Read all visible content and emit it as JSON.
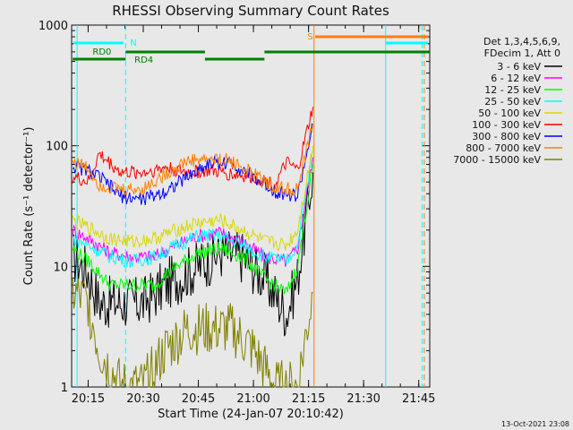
{
  "chart_data": {
    "type": "line",
    "title": "RHESSI Observing Summary Count Rates",
    "xlabel": "Start Time (24-Jan-07 20:10:42)",
    "ylabel": "Count Rate (s⁻¹ detector⁻¹)",
    "y_scale": "log",
    "ylim": [
      1,
      1000
    ],
    "xlim_minutes": [
      20.175,
      21.8
    ],
    "x_ticks": [
      "20:15",
      "20:30",
      "20:45",
      "21:00",
      "21:15",
      "21:30",
      "21:45"
    ],
    "y_ticks": [
      "1",
      "10",
      "100",
      "1000"
    ],
    "legend_header": [
      "Det 1,3,4,5,6,9,",
      "FDecim 1, Att 0"
    ],
    "legend_position": "right",
    "series": [
      {
        "name": "3 - 6 keV",
        "color": "#000000",
        "values": [
          [
            20.18,
            12
          ],
          [
            20.25,
            9
          ],
          [
            20.3,
            5
          ],
          [
            20.4,
            5
          ],
          [
            20.5,
            5
          ],
          [
            20.6,
            7
          ],
          [
            20.75,
            10
          ],
          [
            20.85,
            13
          ],
          [
            20.95,
            12
          ],
          [
            21.05,
            8
          ],
          [
            21.15,
            4
          ],
          [
            21.2,
            8
          ],
          [
            21.27,
            60
          ]
        ]
      },
      {
        "name": "6 - 12 keV",
        "color": "#ff00ff",
        "values": [
          [
            20.18,
            20
          ],
          [
            20.25,
            17
          ],
          [
            20.35,
            13
          ],
          [
            20.45,
            12
          ],
          [
            20.55,
            12
          ],
          [
            20.65,
            15
          ],
          [
            20.75,
            18
          ],
          [
            20.85,
            19
          ],
          [
            20.95,
            16
          ],
          [
            21.05,
            12
          ],
          [
            21.15,
            11
          ],
          [
            21.2,
            14
          ],
          [
            21.27,
            80
          ]
        ]
      },
      {
        "name": "12 - 25 keV",
        "color": "#00ff00",
        "values": [
          [
            20.18,
            14
          ],
          [
            20.25,
            11
          ],
          [
            20.35,
            7
          ],
          [
            20.45,
            7
          ],
          [
            20.55,
            7
          ],
          [
            20.65,
            10
          ],
          [
            20.75,
            13
          ],
          [
            20.85,
            14
          ],
          [
            20.95,
            12
          ],
          [
            21.05,
            8
          ],
          [
            21.15,
            6
          ],
          [
            21.2,
            10
          ],
          [
            21.27,
            70
          ]
        ]
      },
      {
        "name": "25 - 50 keV",
        "color": "#00ffff",
        "values": [
          [
            20.18,
            17
          ],
          [
            20.25,
            15
          ],
          [
            20.35,
            12
          ],
          [
            20.45,
            11
          ],
          [
            20.55,
            12
          ],
          [
            20.65,
            15
          ],
          [
            20.75,
            18
          ],
          [
            20.85,
            18
          ],
          [
            20.95,
            15
          ],
          [
            21.05,
            12
          ],
          [
            21.15,
            11
          ],
          [
            21.2,
            15
          ],
          [
            21.27,
            90
          ]
        ]
      },
      {
        "name": "50 - 100 keV",
        "color": "#d8d800",
        "values": [
          [
            20.18,
            24
          ],
          [
            20.25,
            21
          ],
          [
            20.35,
            17
          ],
          [
            20.45,
            16
          ],
          [
            20.55,
            17
          ],
          [
            20.65,
            20
          ],
          [
            20.75,
            23
          ],
          [
            20.85,
            24
          ],
          [
            20.95,
            20
          ],
          [
            21.05,
            16
          ],
          [
            21.15,
            15
          ],
          [
            21.2,
            20
          ],
          [
            21.27,
            100
          ]
        ]
      },
      {
        "name": "100 - 300 keV",
        "color": "#ff0000",
        "values": [
          [
            20.18,
            55
          ],
          [
            20.25,
            50
          ],
          [
            20.3,
            85
          ],
          [
            20.4,
            60
          ],
          [
            20.5,
            60
          ],
          [
            20.6,
            66
          ],
          [
            20.7,
            60
          ],
          [
            20.8,
            62
          ],
          [
            20.9,
            58
          ],
          [
            21.0,
            55
          ],
          [
            21.1,
            48
          ],
          [
            21.15,
            72
          ],
          [
            21.2,
            62
          ],
          [
            21.27,
            210
          ]
        ]
      },
      {
        "name": "300 - 800 keV",
        "color": "#0000ff",
        "values": [
          [
            20.18,
            68
          ],
          [
            20.25,
            62
          ],
          [
            20.3,
            55
          ],
          [
            20.4,
            38
          ],
          [
            20.5,
            36
          ],
          [
            20.6,
            42
          ],
          [
            20.7,
            55
          ],
          [
            20.8,
            72
          ],
          [
            20.9,
            72
          ],
          [
            21.0,
            55
          ],
          [
            21.1,
            42
          ],
          [
            21.2,
            38
          ],
          [
            21.27,
            150
          ]
        ]
      },
      {
        "name": "800 - 7000 keV",
        "color": "#ff8000",
        "values": [
          [
            20.18,
            75
          ],
          [
            20.25,
            65
          ],
          [
            20.3,
            48
          ],
          [
            20.4,
            43
          ],
          [
            20.5,
            44
          ],
          [
            20.6,
            58
          ],
          [
            20.7,
            75
          ],
          [
            20.8,
            78
          ],
          [
            20.9,
            75
          ],
          [
            21.0,
            58
          ],
          [
            21.1,
            45
          ],
          [
            21.2,
            43
          ],
          [
            21.27,
            150
          ]
        ]
      },
      {
        "name": "7000 - 15000 keV",
        "color": "#808000",
        "values": [
          [
            20.18,
            6
          ],
          [
            20.25,
            5
          ],
          [
            20.3,
            2
          ],
          [
            20.4,
            1
          ],
          [
            20.5,
            1
          ],
          [
            20.6,
            2
          ],
          [
            20.7,
            3
          ],
          [
            20.8,
            3
          ],
          [
            20.9,
            3
          ],
          [
            21.0,
            2
          ],
          [
            21.1,
            1
          ],
          [
            21.2,
            1
          ],
          [
            21.27,
            6
          ]
        ]
      }
    ],
    "annotations": [
      {
        "text": "N",
        "color": "#00ffff"
      },
      {
        "text": "RD0",
        "color": "#008000"
      },
      {
        "text": "RD4",
        "color": "#008000"
      },
      {
        "text": "S",
        "color": "#ff8000"
      }
    ],
    "timestamp": "13-Oct-2021 23:08"
  }
}
